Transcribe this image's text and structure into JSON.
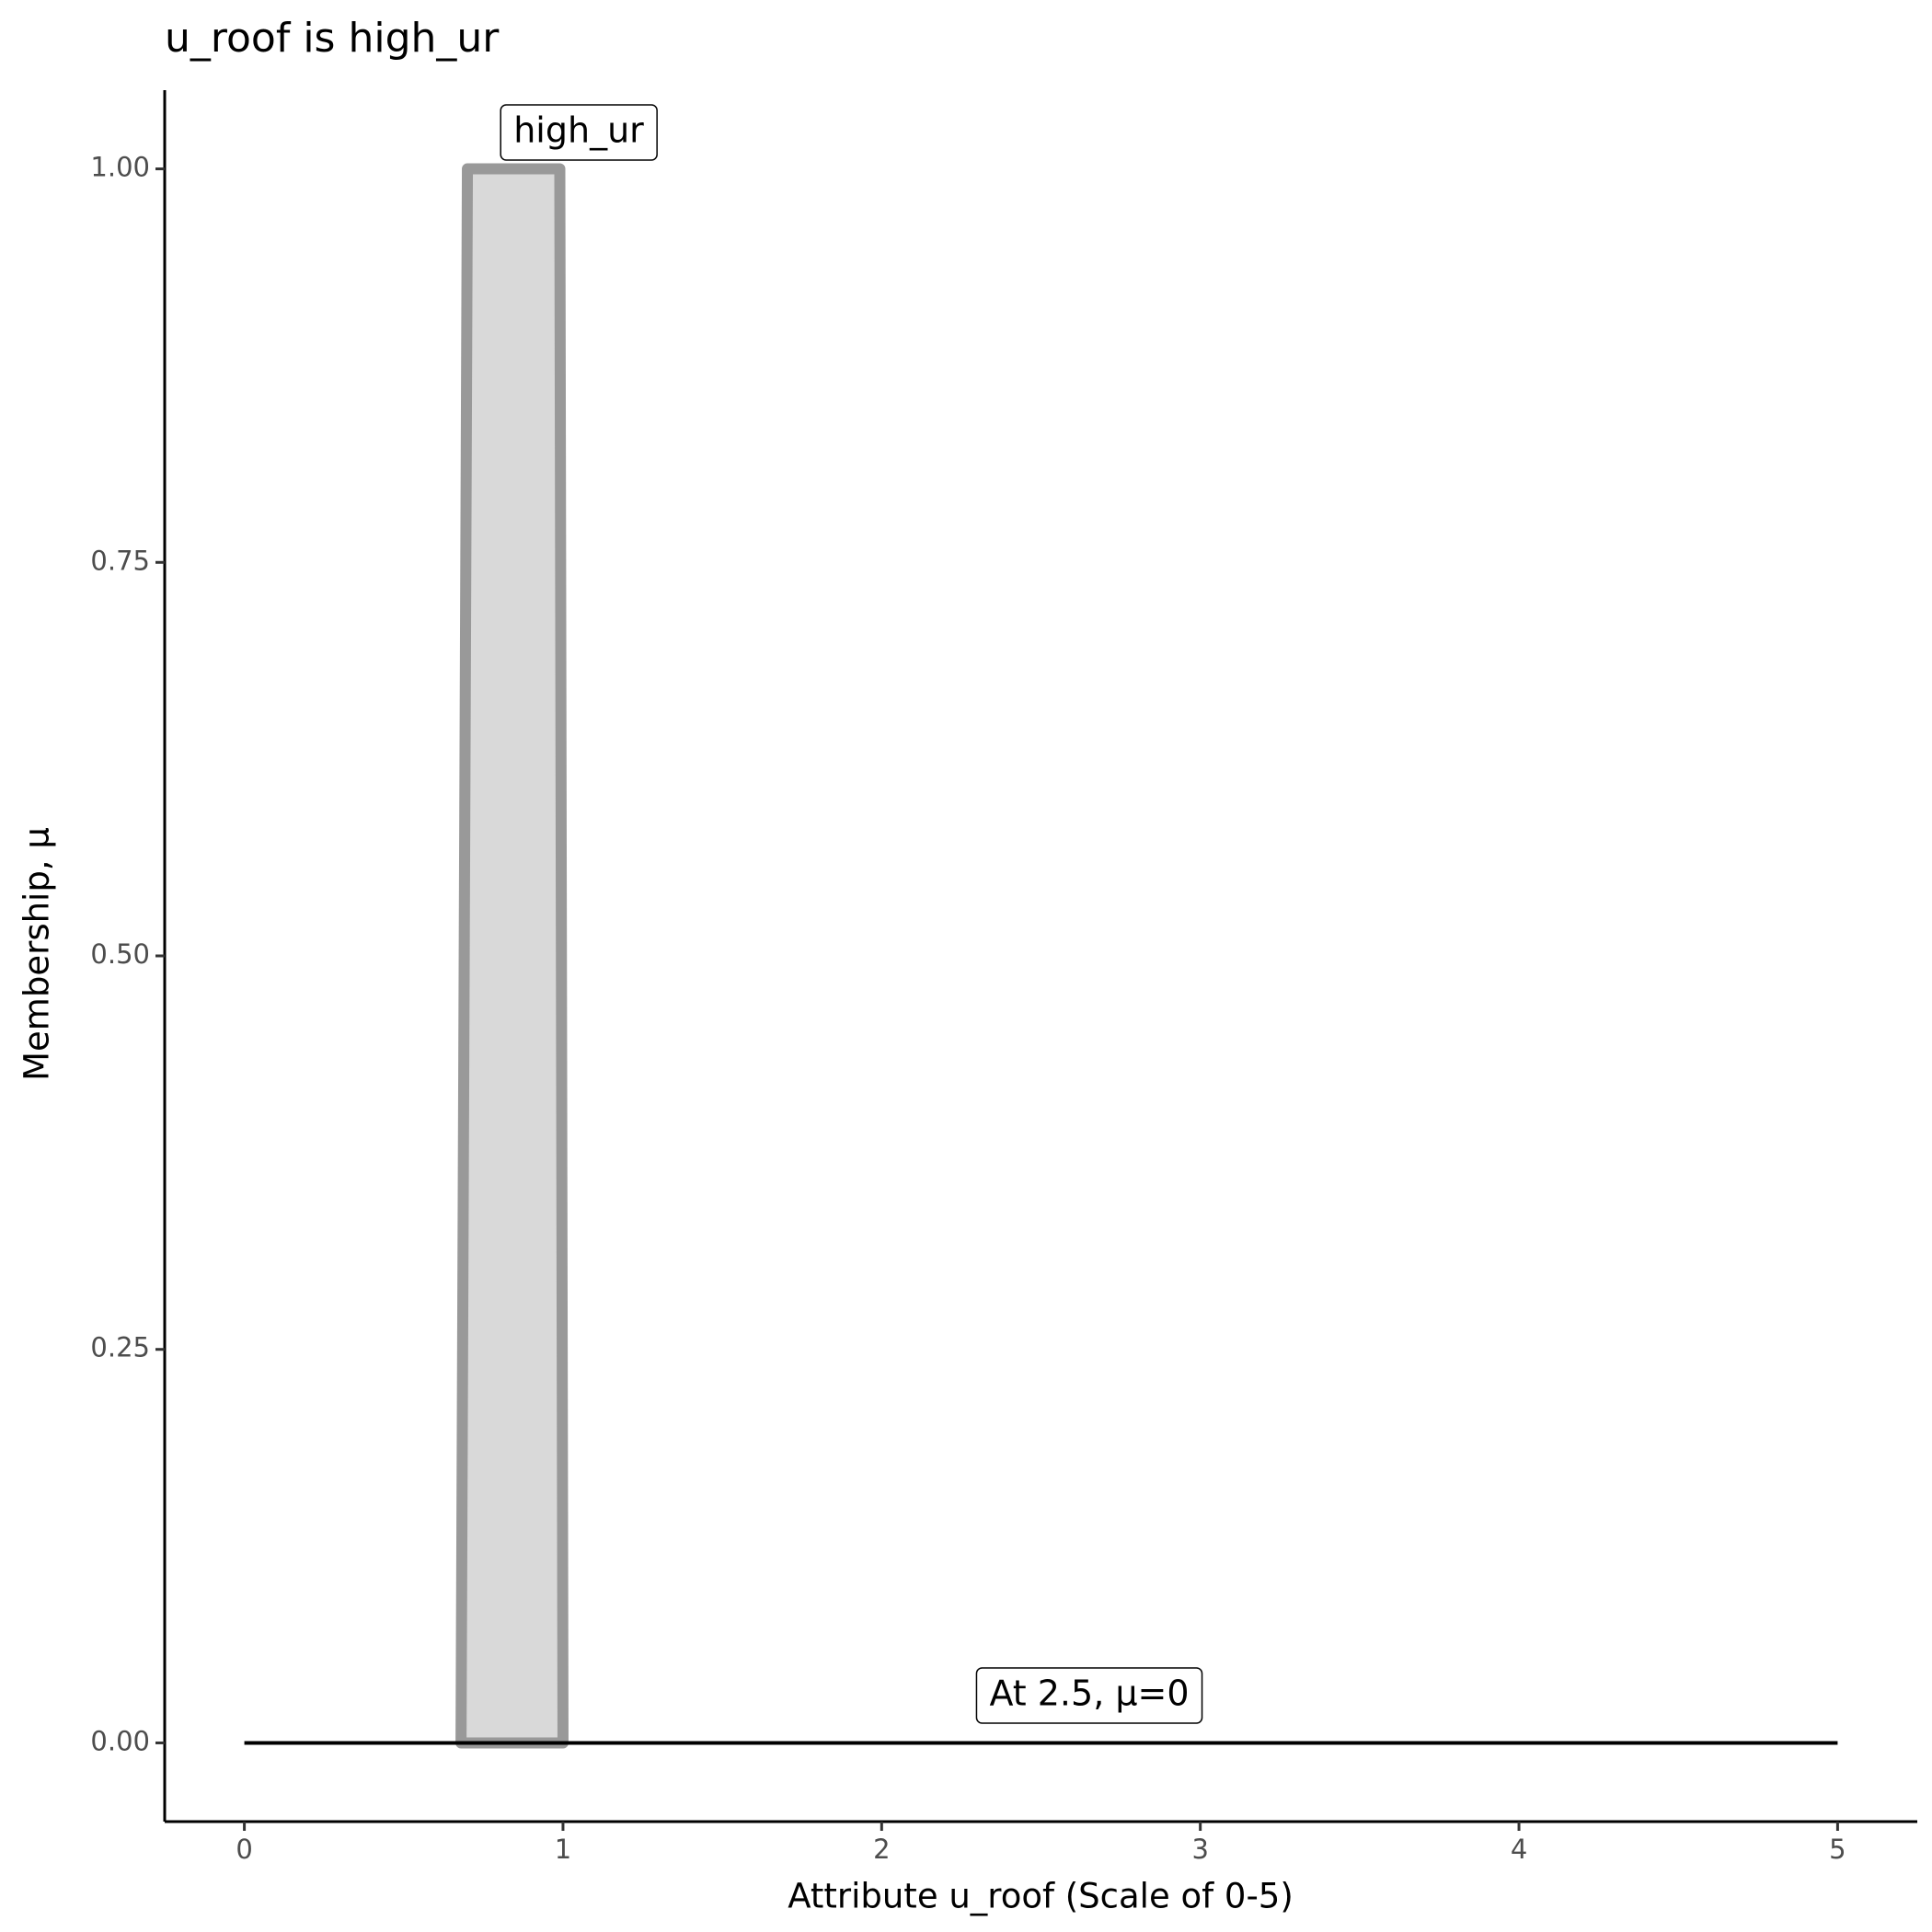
{
  "chart_data": {
    "type": "area",
    "title": "u_roof is high_ur",
    "x_label": "Attribute u_roof (Scale of 0-5)",
    "y_label": "Membership, μ",
    "shape": {
      "x": [
        0.68,
        0.7,
        0.99,
        1.0
      ],
      "y": [
        0,
        1,
        1,
        0
      ],
      "fill": "#d9d9d9",
      "color": "#999999"
    },
    "baseline": {
      "x": [
        0,
        5
      ],
      "y": [
        0,
        0
      ],
      "color": "#000000"
    },
    "annotations": [
      "high_ur",
      "At 2.5, μ=0"
    ],
    "xlim": [
      -0.25,
      5.25
    ],
    "ylim": [
      -0.05,
      1.05
    ],
    "xticks": [
      0,
      1,
      2,
      3,
      4,
      5
    ],
    "yticks": [
      {
        "value": 0,
        "label": "0.00"
      },
      {
        "value": 0.25,
        "label": "0.25"
      },
      {
        "value": 0.5,
        "label": "0.50"
      },
      {
        "value": 0.75,
        "label": "0.75"
      },
      {
        "value": 1,
        "label": "1.00"
      }
    ],
    "grid": false
  }
}
